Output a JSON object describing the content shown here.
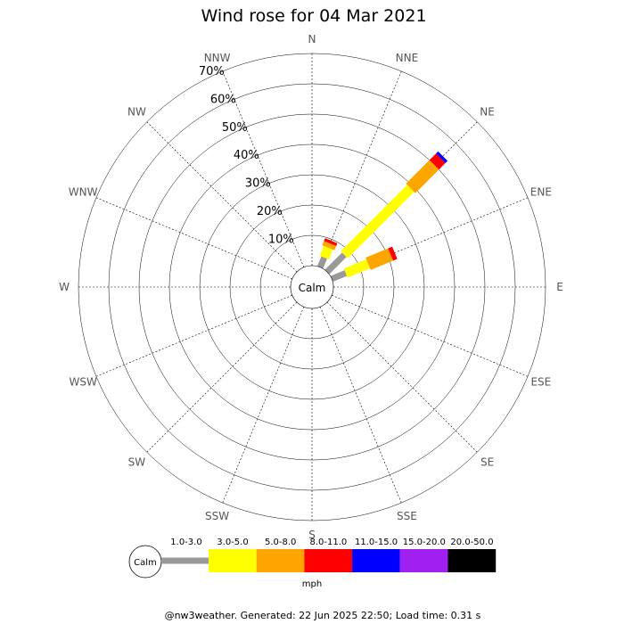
{
  "chart_data": {
    "type": "wind-rose",
    "title": "Wind rose for 04 Mar 2021",
    "directions": [
      "N",
      "NNE",
      "NE",
      "ENE",
      "E",
      "ESE",
      "SE",
      "SSE",
      "S",
      "SSW",
      "SW",
      "WSW",
      "W",
      "WNW",
      "NW",
      "NNW"
    ],
    "ring_labels": [
      "10%",
      "20%",
      "30%",
      "40%",
      "50%",
      "60%",
      "70%"
    ],
    "ring_values": [
      10,
      20,
      30,
      40,
      50,
      60,
      70
    ],
    "rmax": 70,
    "center_label": "Calm",
    "speed_bins": [
      {
        "label": "1.0-3.0",
        "color": "#999999"
      },
      {
        "label": "3.0-5.0",
        "color": "#ffff00"
      },
      {
        "label": "5.0-8.0",
        "color": "#ffa500"
      },
      {
        "label": "8.0-11.0",
        "color": "#ff0000"
      },
      {
        "label": "11.0-15.0",
        "color": "#0000ff"
      },
      {
        "label": "15.0-20.0",
        "color": "#a020f0"
      },
      {
        "label": "20.0-50.0",
        "color": "#000000"
      }
    ],
    "unit": "mph",
    "series": [
      {
        "direction": "NNE",
        "values": [
          3.5,
          3.5,
          1.5,
          1.0,
          0,
          0,
          0
        ]
      },
      {
        "direction": "NE",
        "values": [
          8,
          31,
          11,
          3,
          1,
          0,
          0
        ]
      },
      {
        "direction": "ENE",
        "values": [
          5,
          8,
          8,
          1.5,
          0,
          0,
          0
        ]
      }
    ]
  },
  "footer": "@nw3weather. Generated: 22 Jun 2025 22:50; Load time: 0.31 s"
}
